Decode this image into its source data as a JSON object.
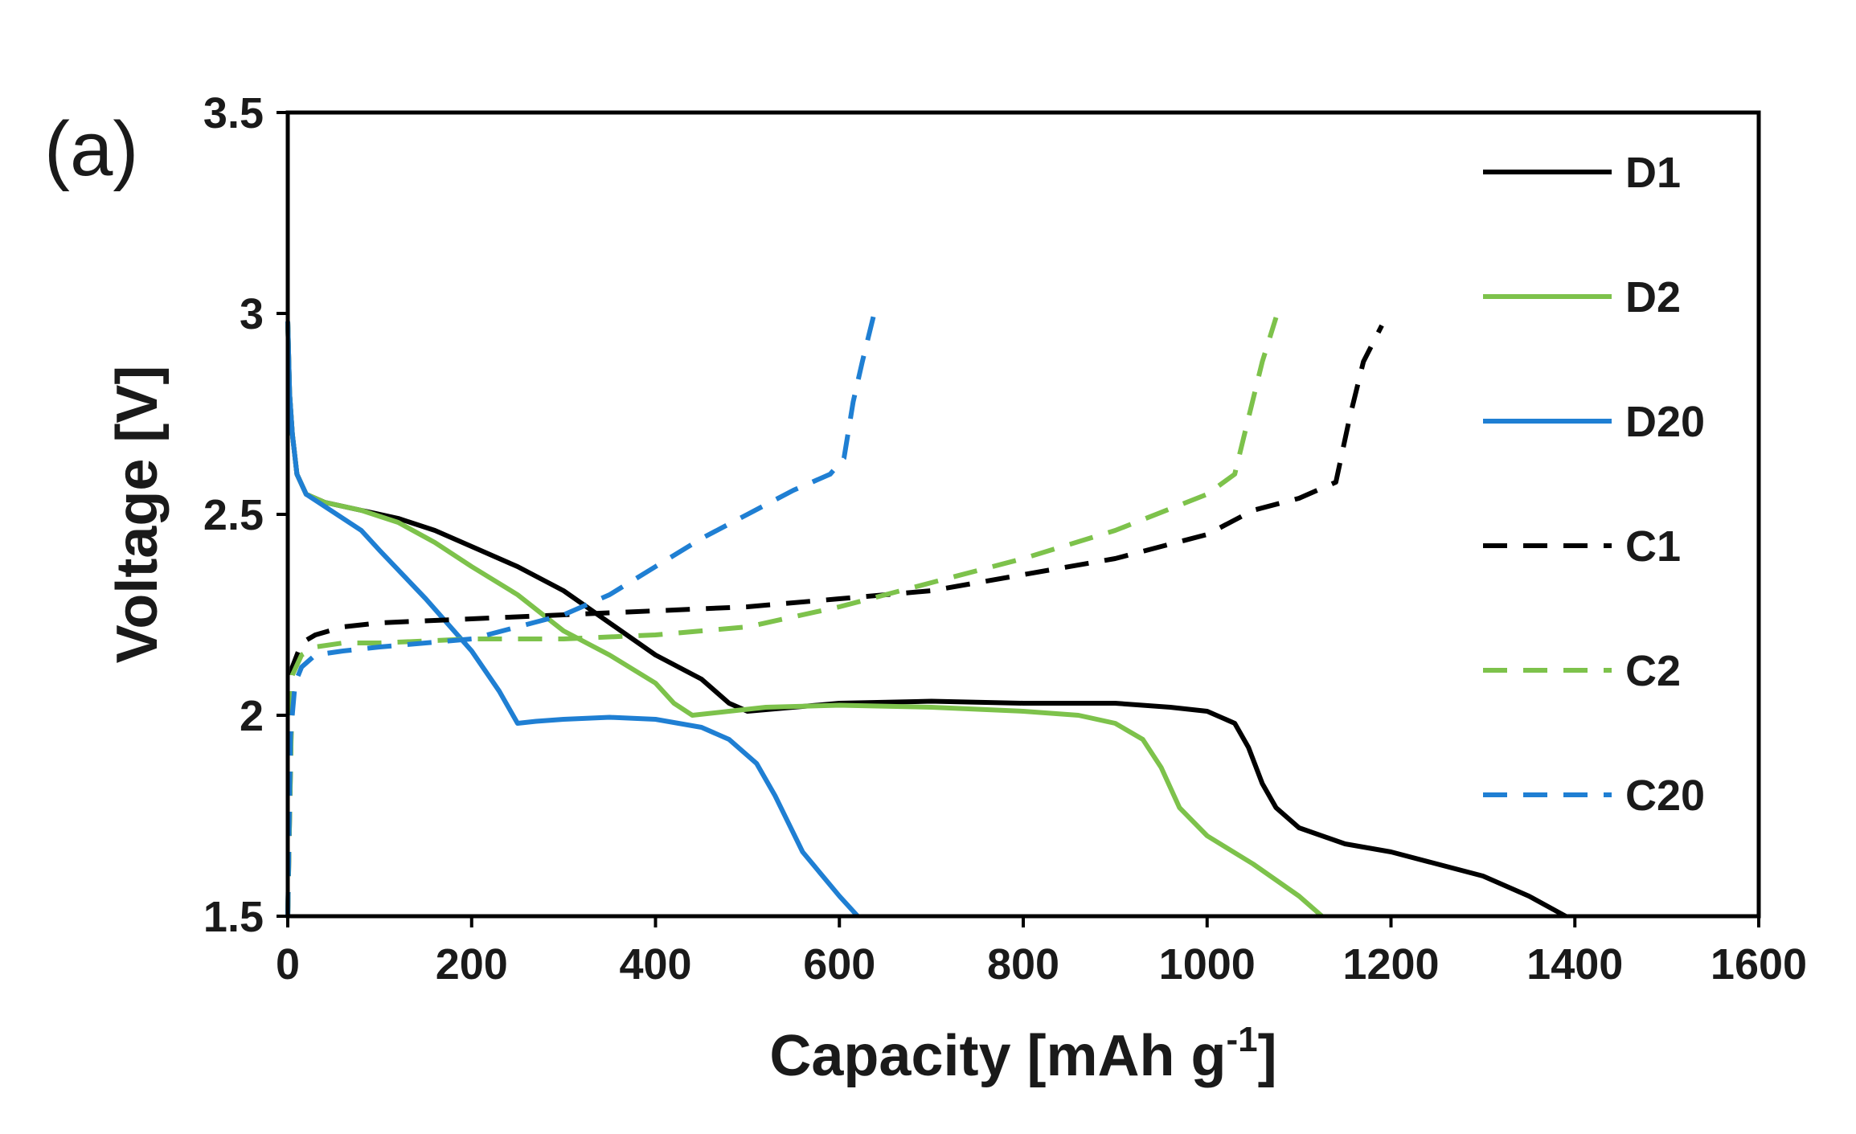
{
  "panel_label": "(a)",
  "chart_data": {
    "type": "line",
    "title": "",
    "xlabel": "Capacity [mAh g",
    "xlabel_sup": "-1",
    "xlabel_end": "]",
    "ylabel": "Voltage [V]",
    "xlim": [
      0,
      1600
    ],
    "ylim": [
      1.5,
      3.5
    ],
    "xticks": [
      0,
      200,
      400,
      600,
      800,
      1000,
      1200,
      1400,
      1600
    ],
    "yticks": [
      1.5,
      2,
      2.5,
      3,
      3.5
    ],
    "ytick_labels": [
      "1.5",
      "2",
      "2.5",
      "3",
      "3.5"
    ],
    "legend_position": "right",
    "grid": false,
    "series": [
      {
        "name": "D1",
        "color": "#000000",
        "dashed": false,
        "x": [
          0,
          2,
          5,
          10,
          20,
          40,
          80,
          120,
          160,
          200,
          250,
          300,
          350,
          400,
          450,
          480,
          500,
          550,
          600,
          700,
          800,
          900,
          960,
          1000,
          1030,
          1045,
          1060,
          1075,
          1100,
          1150,
          1200,
          1250,
          1300,
          1350,
          1390
        ],
        "y": [
          2.98,
          2.8,
          2.7,
          2.6,
          2.55,
          2.53,
          2.51,
          2.49,
          2.46,
          2.42,
          2.37,
          2.31,
          2.23,
          2.15,
          2.09,
          2.03,
          2.01,
          2.02,
          2.03,
          2.035,
          2.03,
          2.03,
          2.02,
          2.01,
          1.98,
          1.92,
          1.83,
          1.77,
          1.72,
          1.68,
          1.66,
          1.63,
          1.6,
          1.55,
          1.5
        ]
      },
      {
        "name": "D2",
        "color": "#7dc24b",
        "dashed": false,
        "x": [
          0,
          2,
          5,
          10,
          20,
          40,
          80,
          120,
          160,
          200,
          250,
          300,
          350,
          400,
          420,
          440,
          480,
          520,
          600,
          700,
          800,
          860,
          900,
          930,
          950,
          970,
          1000,
          1050,
          1100,
          1125
        ],
        "y": [
          2.98,
          2.8,
          2.7,
          2.6,
          2.55,
          2.53,
          2.51,
          2.48,
          2.43,
          2.37,
          2.3,
          2.21,
          2.15,
          2.08,
          2.03,
          2.0,
          2.01,
          2.02,
          2.025,
          2.02,
          2.01,
          2.0,
          1.98,
          1.94,
          1.87,
          1.77,
          1.7,
          1.63,
          1.55,
          1.5
        ]
      },
      {
        "name": "D20",
        "color": "#1f7fd3",
        "dashed": false,
        "x": [
          0,
          2,
          5,
          10,
          20,
          40,
          80,
          100,
          150,
          200,
          230,
          250,
          270,
          300,
          350,
          400,
          450,
          480,
          510,
          530,
          560,
          600,
          620
        ],
        "y": [
          2.98,
          2.8,
          2.7,
          2.6,
          2.55,
          2.52,
          2.46,
          2.41,
          2.29,
          2.16,
          2.06,
          1.98,
          1.985,
          1.99,
          1.995,
          1.99,
          1.97,
          1.94,
          1.88,
          1.8,
          1.66,
          1.55,
          1.5
        ]
      },
      {
        "name": "C1",
        "color": "#000000",
        "dashed": true,
        "x": [
          0,
          5,
          15,
          30,
          60,
          100,
          200,
          300,
          400,
          500,
          600,
          700,
          800,
          900,
          1000,
          1050,
          1100,
          1140,
          1155,
          1170,
          1190
        ],
        "y": [
          1.5,
          2.12,
          2.18,
          2.2,
          2.22,
          2.23,
          2.24,
          2.25,
          2.26,
          2.27,
          2.29,
          2.31,
          2.35,
          2.39,
          2.45,
          2.51,
          2.54,
          2.58,
          2.74,
          2.88,
          2.97
        ]
      },
      {
        "name": "C2",
        "color": "#7dc24b",
        "dashed": true,
        "x": [
          0,
          5,
          15,
          30,
          60,
          100,
          200,
          300,
          400,
          500,
          600,
          700,
          800,
          900,
          1000,
          1030,
          1045,
          1060,
          1075
        ],
        "y": [
          1.5,
          2.1,
          2.15,
          2.17,
          2.18,
          2.18,
          2.19,
          2.19,
          2.2,
          2.22,
          2.27,
          2.33,
          2.39,
          2.46,
          2.55,
          2.6,
          2.74,
          2.88,
          2.99
        ]
      },
      {
        "name": "C20",
        "color": "#1f7fd3",
        "dashed": true,
        "x": [
          0,
          3,
          8,
          15,
          30,
          60,
          100,
          200,
          300,
          350,
          400,
          450,
          500,
          550,
          590,
          605,
          615,
          625,
          640
        ],
        "y": [
          1.5,
          1.95,
          2.08,
          2.12,
          2.15,
          2.16,
          2.17,
          2.19,
          2.25,
          2.3,
          2.37,
          2.44,
          2.5,
          2.56,
          2.6,
          2.64,
          2.78,
          2.88,
          3.02
        ]
      }
    ]
  }
}
